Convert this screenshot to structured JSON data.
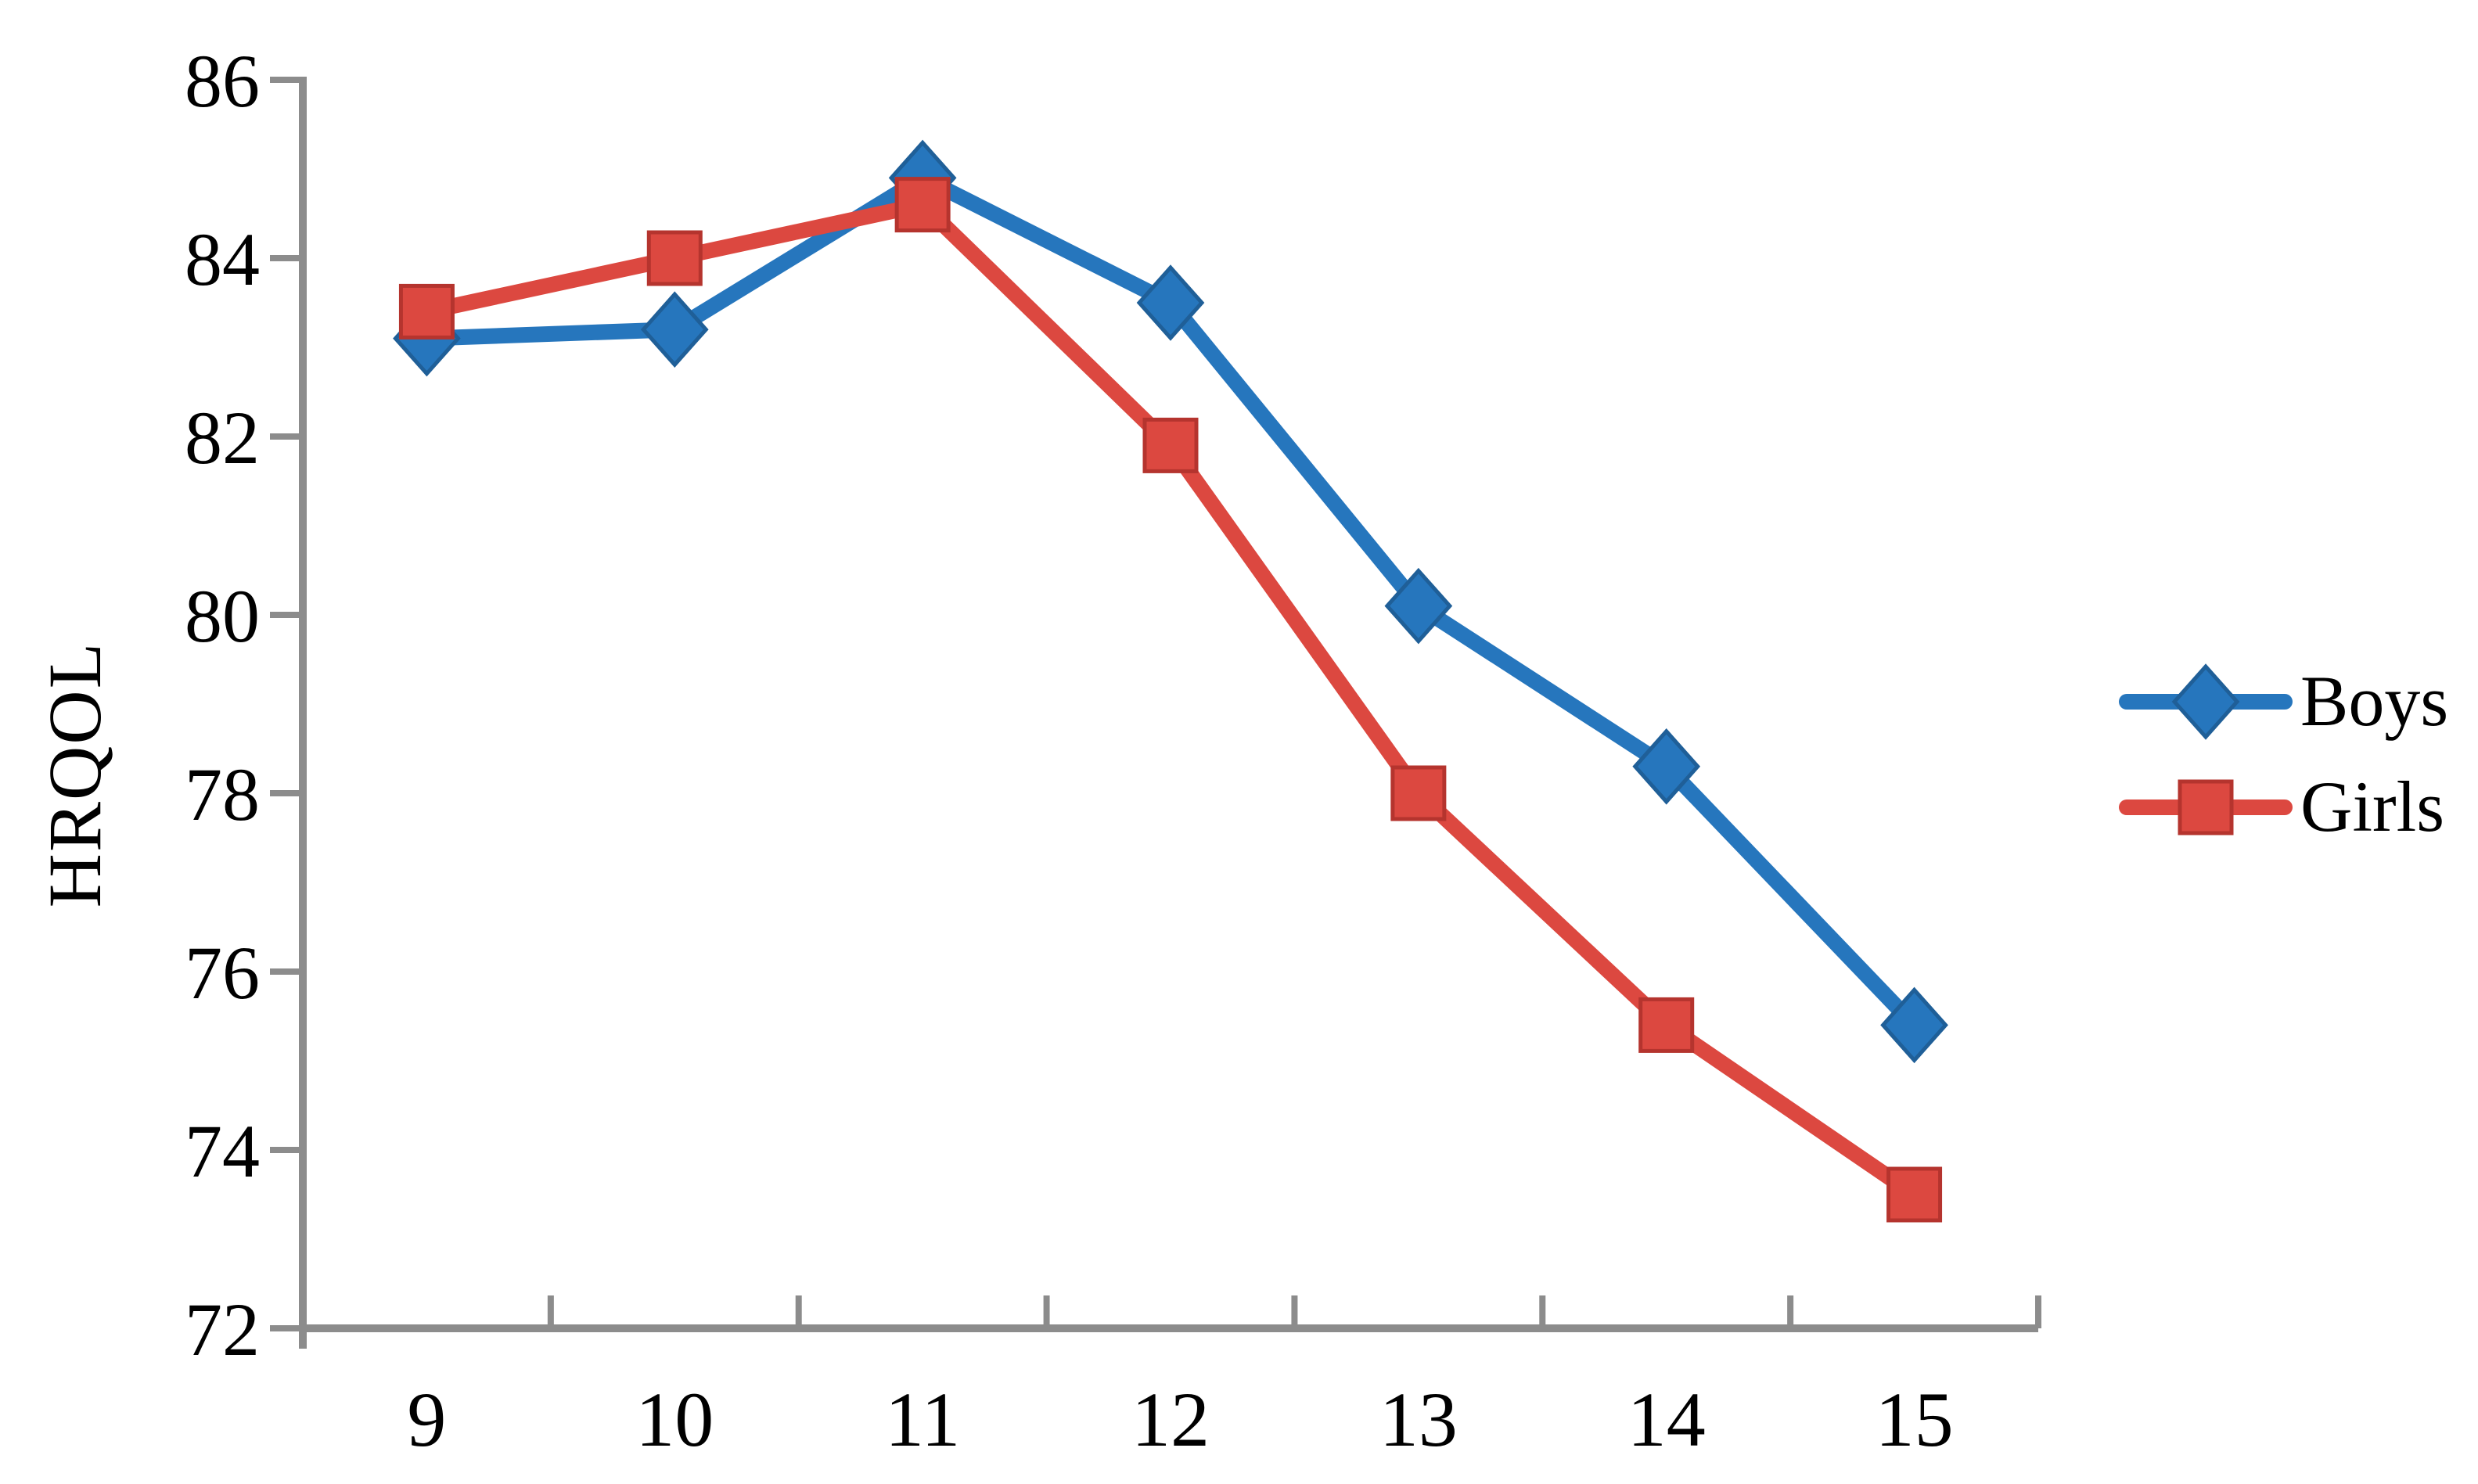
{
  "figure": {
    "background": "#ffffff",
    "y_axis_title": "HRQOL"
  },
  "chart_data": {
    "type": "line",
    "title": "",
    "xlabel": "",
    "ylabel": "HRQOL",
    "x": [
      9,
      10,
      11,
      12,
      13,
      14,
      15
    ],
    "x_tick_labels": [
      "9",
      "10",
      "11",
      "12",
      "13",
      "14",
      "15"
    ],
    "ylim": [
      72,
      86
    ],
    "yticks": [
      86,
      84,
      82,
      80,
      78,
      76,
      74,
      72
    ],
    "ytick_labels": [
      "86",
      "84",
      "82",
      "80",
      "78",
      "76",
      "74",
      "72"
    ],
    "grid": false,
    "legend_position": "center-right",
    "series": [
      {
        "name": "Boys",
        "marker": "diamond",
        "color": "#2676BD",
        "marker_edge": "#1F5F98",
        "values": [
          83.1,
          83.2,
          84.9,
          83.5,
          80.1,
          78.3,
          75.4
        ]
      },
      {
        "name": "Girls",
        "marker": "square",
        "color": "#DC4840",
        "marker_edge": "#B5342E",
        "values": [
          83.4,
          84.0,
          84.6,
          81.9,
          78.0,
          75.4,
          73.5
        ]
      }
    ],
    "axis_color": "#8C8C8C",
    "text_color": "#000000"
  }
}
